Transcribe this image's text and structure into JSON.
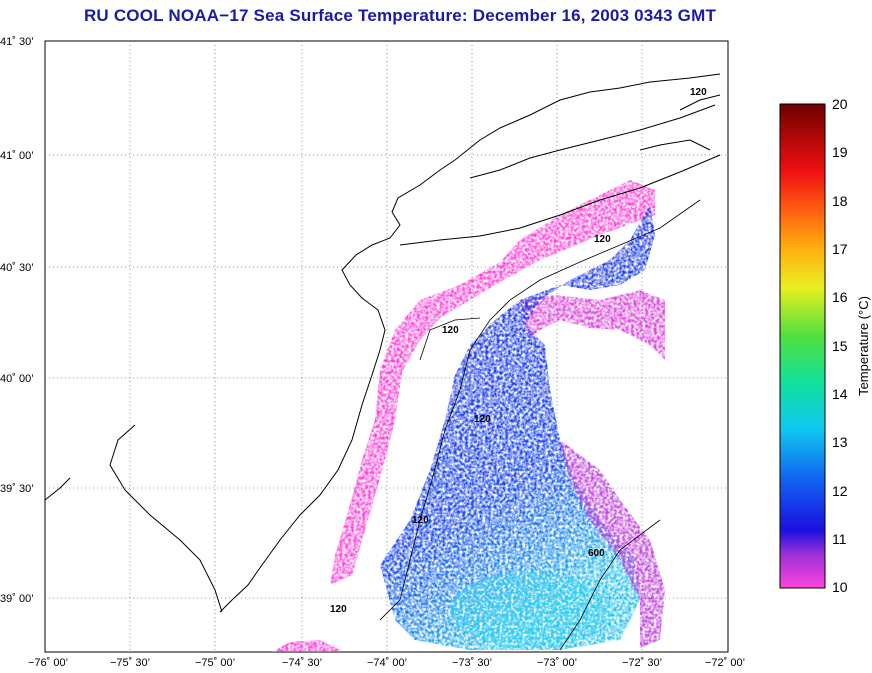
{
  "title": "RU COOL  NOAA−17  Sea Surface Temperature:  December 16, 2003 0343 GMT",
  "map": {
    "lat_labels": [
      "41˚ 30’",
      "41˚ 00’",
      "40˚ 30’",
      "40˚ 00’",
      "39˚ 30’",
      "39˚ 00’"
    ],
    "lon_labels": [
      "−76˚ 00’",
      "−75˚ 30’",
      "−75˚ 00’",
      "−74˚ 30’",
      "−74˚ 00’",
      "−73˚ 30’",
      "−73˚ 00’",
      "−72˚ 30’",
      "−72˚ 00’"
    ],
    "contour_labels": [
      "120",
      "120",
      "120",
      "120",
      "120",
      "120",
      "600"
    ],
    "grid": true,
    "colors": {
      "cold": "#ff44cc",
      "mid": "#1a1ae6",
      "warm": "#22d8e8",
      "land_outline": "#000000"
    }
  },
  "colorbar": {
    "label": "Temperature (°C)",
    "ticks": [
      "20",
      "19",
      "18",
      "17",
      "16",
      "15",
      "14",
      "13",
      "12",
      "11",
      "10"
    ],
    "min": 10,
    "max": 20
  }
}
